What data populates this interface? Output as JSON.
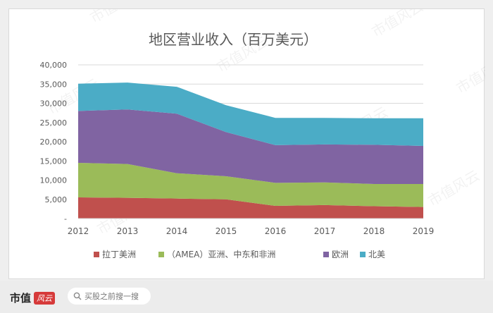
{
  "chart_data": {
    "type": "area",
    "stacked": true,
    "title": "地区营业收入（百万美元）",
    "categories": [
      "2012",
      "2013",
      "2014",
      "2015",
      "2016",
      "2017",
      "2018",
      "2019"
    ],
    "ylim": [
      0,
      40000
    ],
    "yticks": [
      "-",
      "5,000",
      "10,000",
      "15,000",
      "20,000",
      "25,000",
      "30,000",
      "35,000",
      "40,000"
    ],
    "series": [
      {
        "name": "拉丁美洲",
        "color": "#c0504d",
        "values": [
          5500,
          5400,
          5200,
          5000,
          3300,
          3500,
          3200,
          3000
        ]
      },
      {
        "name": "（AMEA）亚洲、中东和非洲",
        "color": "#9bbb59",
        "values": [
          9000,
          8800,
          6600,
          6000,
          6000,
          5900,
          5800,
          6000
        ]
      },
      {
        "name": "欧洲",
        "color": "#8064a2",
        "values": [
          13500,
          14200,
          15500,
          11500,
          9800,
          9900,
          10200,
          9900
        ]
      },
      {
        "name": "北美",
        "color": "#4bacc6",
        "values": [
          7100,
          7000,
          7000,
          7000,
          7100,
          6900,
          6900,
          7200
        ]
      }
    ],
    "legend_position": "bottom"
  },
  "watermark": "市值风云",
  "footer": {
    "brand": "市值",
    "logo_text": "风云",
    "search_placeholder": "买股之前搜一搜"
  },
  "colors": {
    "axis_text": "#595959",
    "grid": "#d9d9d9"
  }
}
